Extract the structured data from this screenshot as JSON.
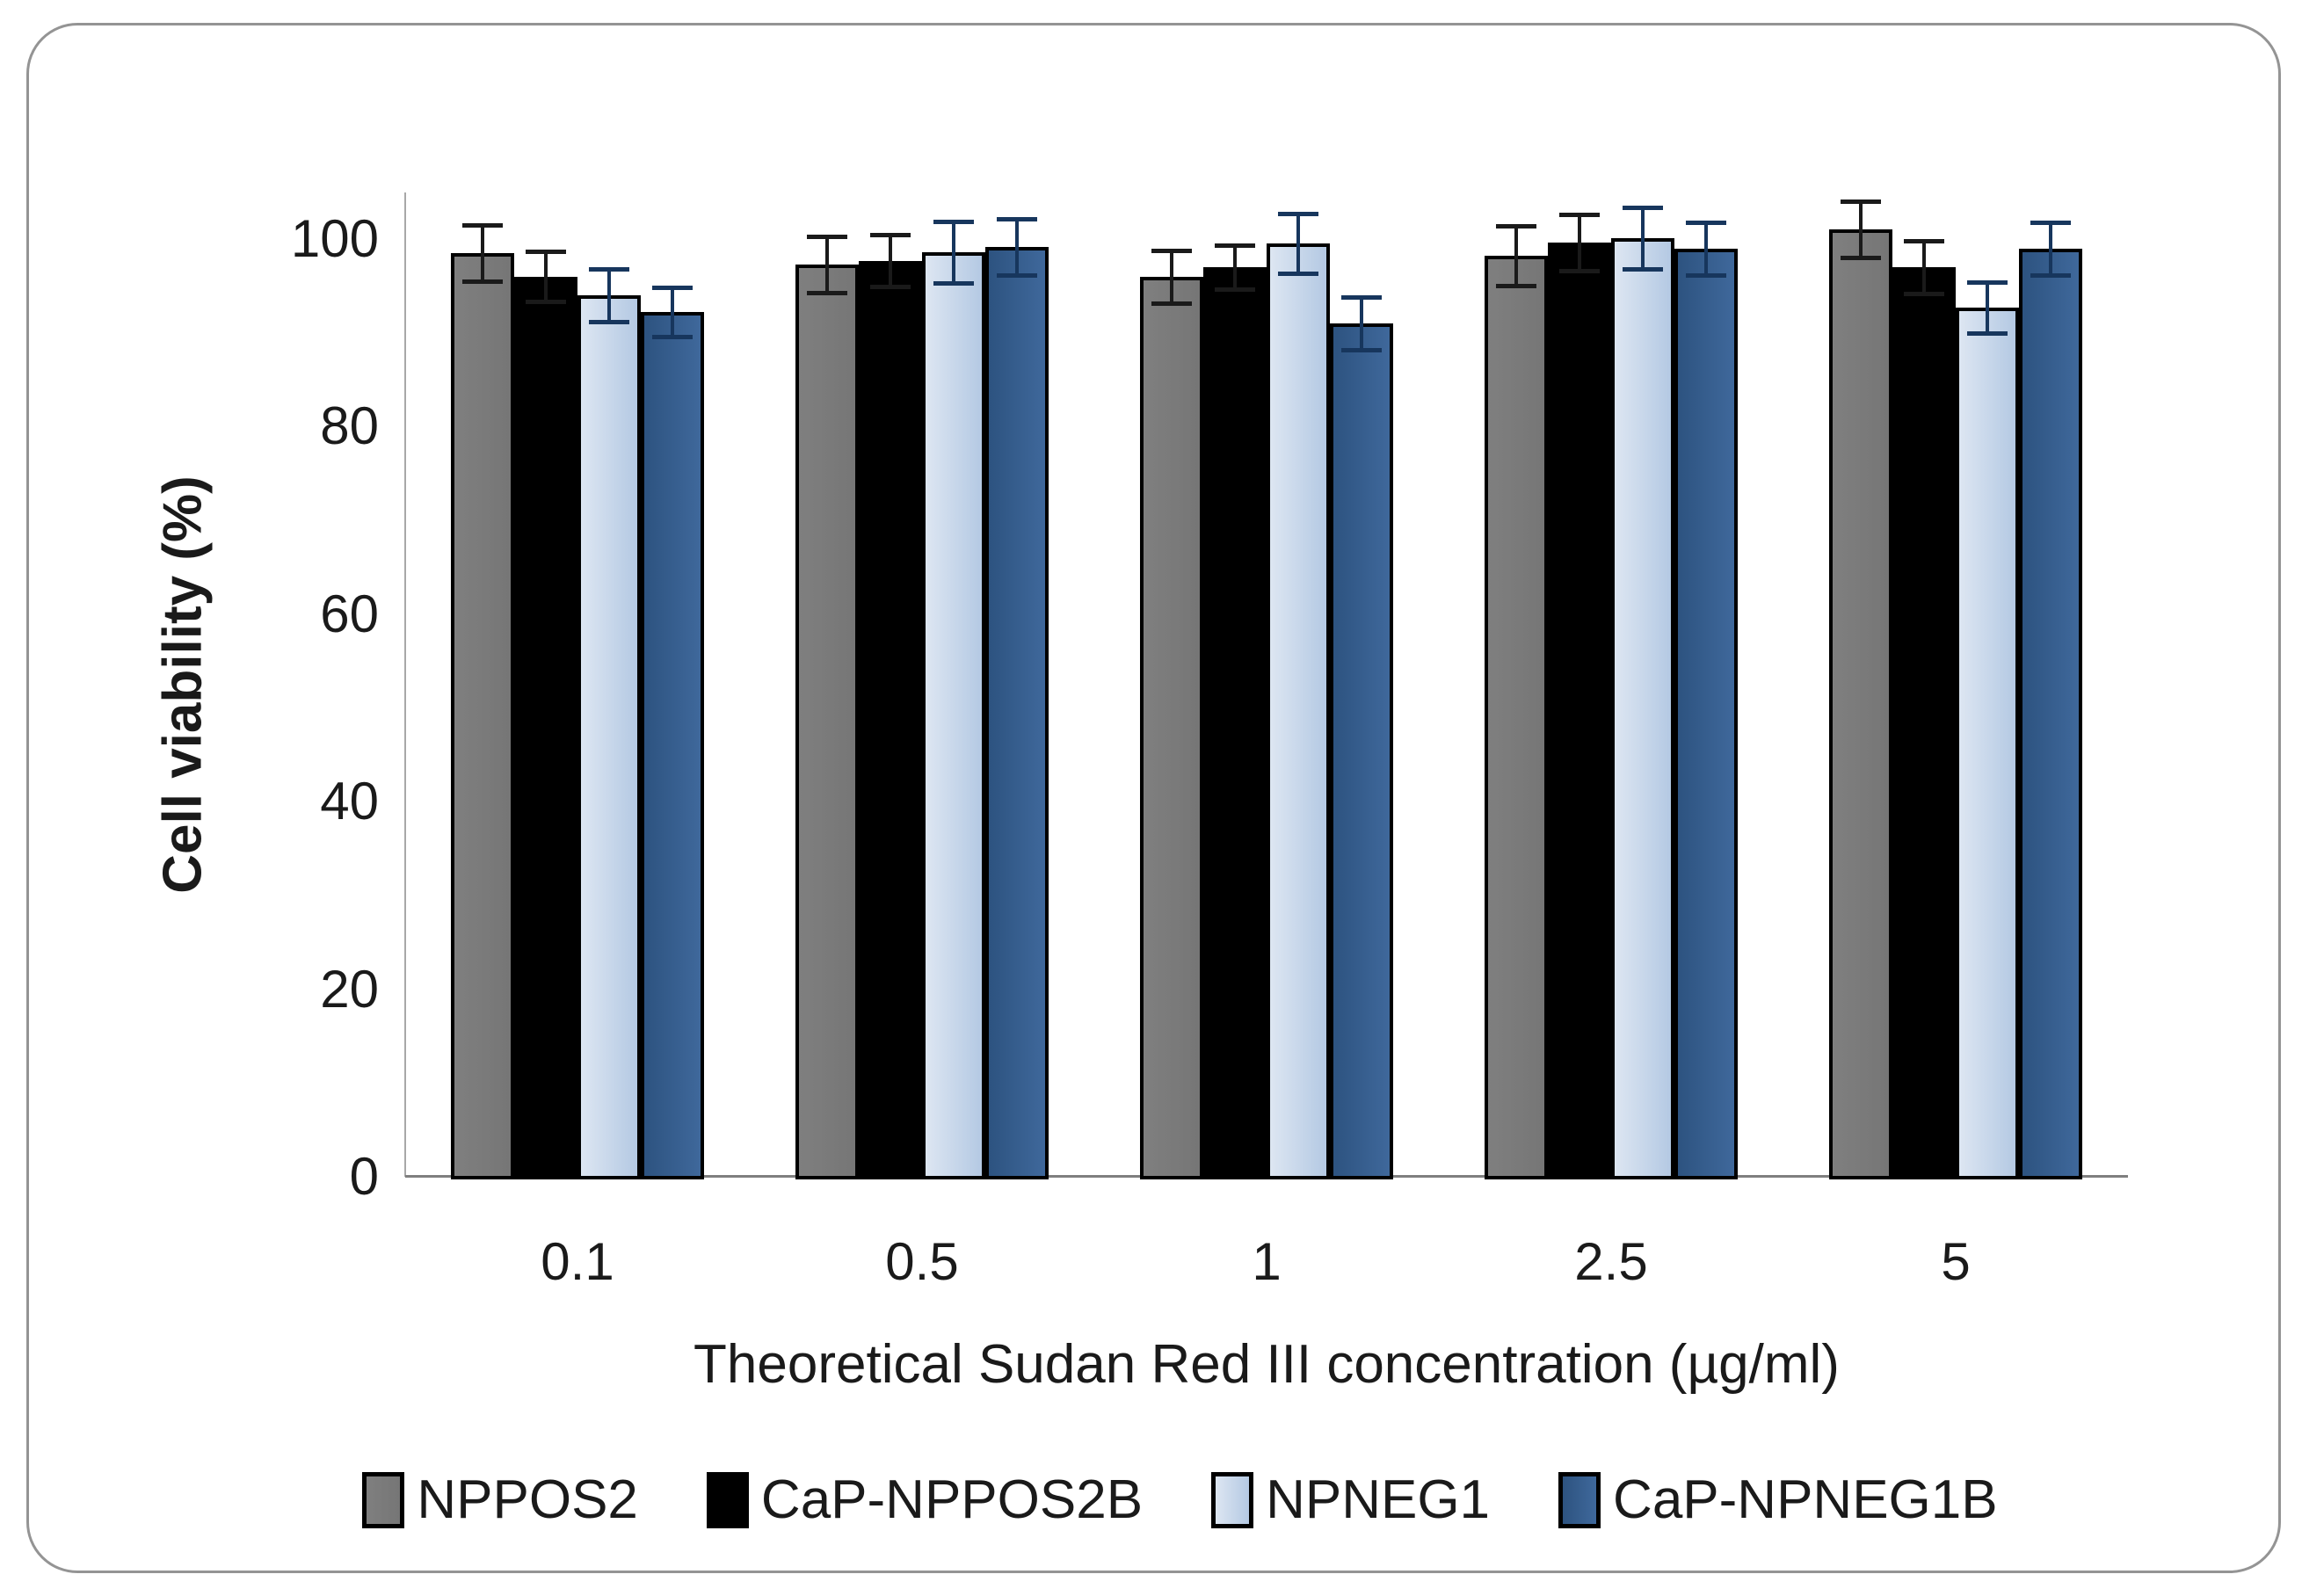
{
  "figure": {
    "border_color": "#949494",
    "background": "#ffffff"
  },
  "chart_data": {
    "type": "bar",
    "title": "",
    "xlabel": "Theoretical Sudan Red III concentration (µg/ml)",
    "ylabel": "Cell viability (%)",
    "categories": [
      "0.1",
      "0.5",
      "1",
      "2.5",
      "5"
    ],
    "yticks": [
      100,
      80,
      60,
      40,
      20,
      0
    ],
    "ylim": [
      0,
      105
    ],
    "grid": false,
    "legend_position": "bottom",
    "error_bars": true,
    "series": [
      {
        "name": "NPPOS2",
        "color": "#7f7f7f",
        "color2": "#767676",
        "error_color": "#1a1a1a",
        "values": [
          98.5,
          97.3,
          96.0,
          98.2,
          101.0
        ],
        "errors": [
          3.0,
          3.0,
          2.8,
          3.2,
          3.0
        ]
      },
      {
        "name": "CaP-NPPOS2B",
        "color": "#000000",
        "color2": "#000000",
        "error_color": "#1a1a1a",
        "values": [
          96.0,
          97.7,
          97.0,
          99.6,
          97.0
        ],
        "errors": [
          2.7,
          2.8,
          2.3,
          3.0,
          2.8
        ]
      },
      {
        "name": "NPNEG1",
        "color": "#dde6f2",
        "color2": "#b4c9e3",
        "error_color": "#17365d",
        "values": [
          94.0,
          98.6,
          99.5,
          100.1,
          92.7
        ],
        "errors": [
          2.8,
          3.3,
          3.2,
          3.3,
          2.7
        ]
      },
      {
        "name": "CaP-NPNEG1B",
        "color": "#2d5380",
        "color2": "#3f689b",
        "error_color": "#17365d",
        "values": [
          92.2,
          99.2,
          91.0,
          99.0,
          99.0
        ],
        "errors": [
          2.6,
          3.0,
          2.8,
          2.8,
          2.8
        ]
      }
    ]
  }
}
